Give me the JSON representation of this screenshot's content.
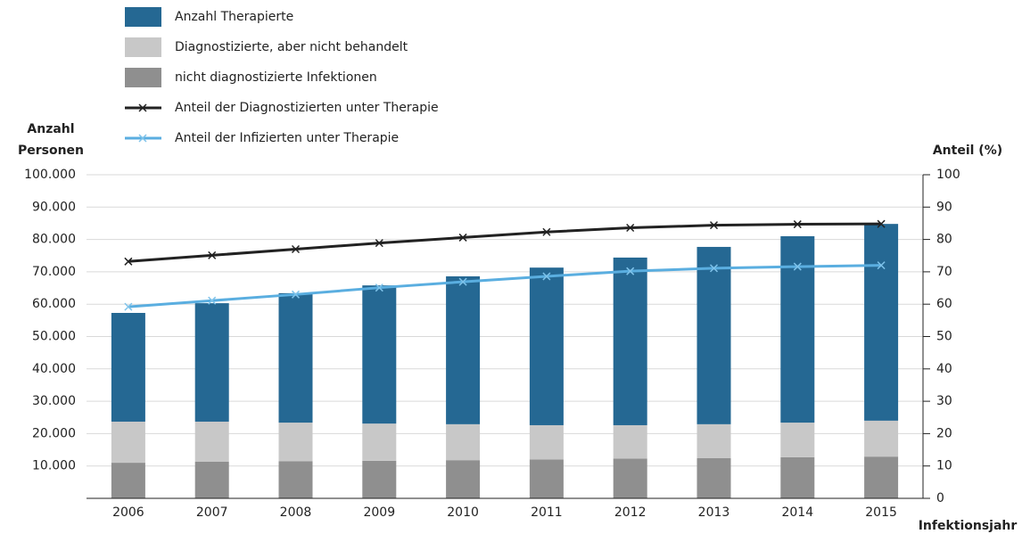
{
  "chart_data": {
    "type": "bar",
    "categories": [
      "2006",
      "2007",
      "2008",
      "2009",
      "2010",
      "2011",
      "2012",
      "2013",
      "2014",
      "2015"
    ],
    "series": [
      {
        "name": "Anzahl Therapierte",
        "type": "bar",
        "color": "#256893",
        "values": [
          33600,
          36600,
          40000,
          42700,
          45700,
          48700,
          51800,
          54800,
          57600,
          60800
        ]
      },
      {
        "name": "Diagnostizierte, aber nicht behandelt",
        "type": "bar",
        "color": "#c8c8c8",
        "values": [
          12700,
          12400,
          11900,
          11500,
          11100,
          10600,
          10300,
          10500,
          10700,
          11100
        ]
      },
      {
        "name": "nicht diagnostizierte Infektionen",
        "type": "bar",
        "color": "#8f8f8f",
        "values": [
          11000,
          11300,
          11500,
          11600,
          11800,
          12000,
          12300,
          12400,
          12700,
          12900
        ]
      },
      {
        "name": "Anteil der Diagnostizierten unter Therapie",
        "type": "line",
        "axis": "y2",
        "color": "#222222",
        "values": [
          73.2,
          75.1,
          77.0,
          78.9,
          80.6,
          82.3,
          83.6,
          84.4,
          84.7,
          84.8
        ]
      },
      {
        "name": "Anteil der Infizierten unter Therapie",
        "type": "line",
        "axis": "y2",
        "color": "#5aaee0",
        "values": [
          59.2,
          61.1,
          63.0,
          65.1,
          66.9,
          68.6,
          70.2,
          71.1,
          71.6,
          72.0
        ]
      }
    ],
    "ylabel": [
      "Anzahl",
      "Personen"
    ],
    "y2label": "Anteil (%)",
    "xlabel": "Infektionsjahr",
    "ylim": [
      0,
      100000
    ],
    "yticks": [
      {
        "value": 10000,
        "label": "10.000"
      },
      {
        "value": 20000,
        "label": "20.000"
      },
      {
        "value": 30000,
        "label": "30.000"
      },
      {
        "value": 40000,
        "label": "40.000"
      },
      {
        "value": 50000,
        "label": "50.000"
      },
      {
        "value": 60000,
        "label": "60.000"
      },
      {
        "value": 70000,
        "label": "70.000"
      },
      {
        "value": 80000,
        "label": "80.000"
      },
      {
        "value": 90000,
        "label": "90.000"
      },
      {
        "value": 100000,
        "label": "100.000"
      }
    ],
    "y2lim": [
      0,
      100
    ],
    "y2ticks": [
      0,
      10,
      20,
      30,
      40,
      50,
      60,
      70,
      80,
      90,
      100
    ],
    "grid": true
  }
}
